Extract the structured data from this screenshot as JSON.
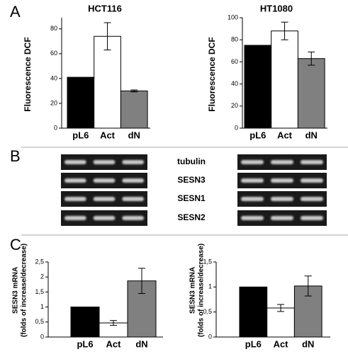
{
  "panel_labels": [
    "A",
    "B",
    "C"
  ],
  "gel": {
    "rows": [
      "tubulin",
      "SESN3",
      "SESN1",
      "SESN2"
    ]
  },
  "chart_data": [
    {
      "type": "bar",
      "title": "HCT116",
      "y_label": [
        "Fluorescence DCF"
      ],
      "categories": [
        "pL6",
        "Act",
        "dN"
      ],
      "values": [
        41,
        74,
        30
      ],
      "errors": [
        null,
        11,
        0.8
      ],
      "colors": [
        "#000000",
        "#ffffff",
        "#808080"
      ],
      "ylim": [
        0,
        89
      ],
      "yticks": [
        0,
        20,
        40,
        60,
        80
      ]
    },
    {
      "type": "bar",
      "title": "HT1080",
      "y_label": [
        "Fluorescence DCF"
      ],
      "categories": [
        "pL6",
        "Act",
        "dN"
      ],
      "values": [
        75,
        88,
        63
      ],
      "errors": [
        null,
        8,
        6
      ],
      "colors": [
        "#000000",
        "#ffffff",
        "#808080"
      ],
      "ylim": [
        0,
        100
      ],
      "yticks": [
        0,
        20,
        40,
        60,
        80,
        100
      ]
    },
    {
      "type": "bar",
      "y_label": [
        "SESN3 mRNA",
        "(folds of increase/decrease)"
      ],
      "categories": [
        "pL6",
        "Act",
        "dN"
      ],
      "values": [
        1,
        0.47,
        1.87
      ],
      "errors": [
        null,
        0.08,
        0.42
      ],
      "colors": [
        "#000000",
        "#ffffff",
        "#808080"
      ],
      "ylim": [
        0,
        2.5
      ],
      "yticks": [
        0,
        {
          "value": 0.5,
          "label": "0,5"
        },
        1,
        {
          "value": 1.5,
          "label": "1,5"
        },
        2,
        {
          "value": 2.5,
          "label": "2,5"
        }
      ]
    },
    {
      "type": "bar",
      "y_label": [
        "SESN3 mRNA",
        "(folds of increase/decrease)"
      ],
      "categories": [
        "pL6",
        "Act",
        "dN"
      ],
      "values": [
        1,
        0.58,
        1.02
      ],
      "errors": [
        null,
        0.07,
        0.2
      ],
      "colors": [
        "#000000",
        "#ffffff",
        "#808080"
      ],
      "ylim": [
        0,
        1.5
      ],
      "yticks": [
        0,
        {
          "value": 0.5,
          "label": "0,5"
        },
        1,
        {
          "value": 1.5,
          "label": "1,5"
        }
      ]
    }
  ]
}
